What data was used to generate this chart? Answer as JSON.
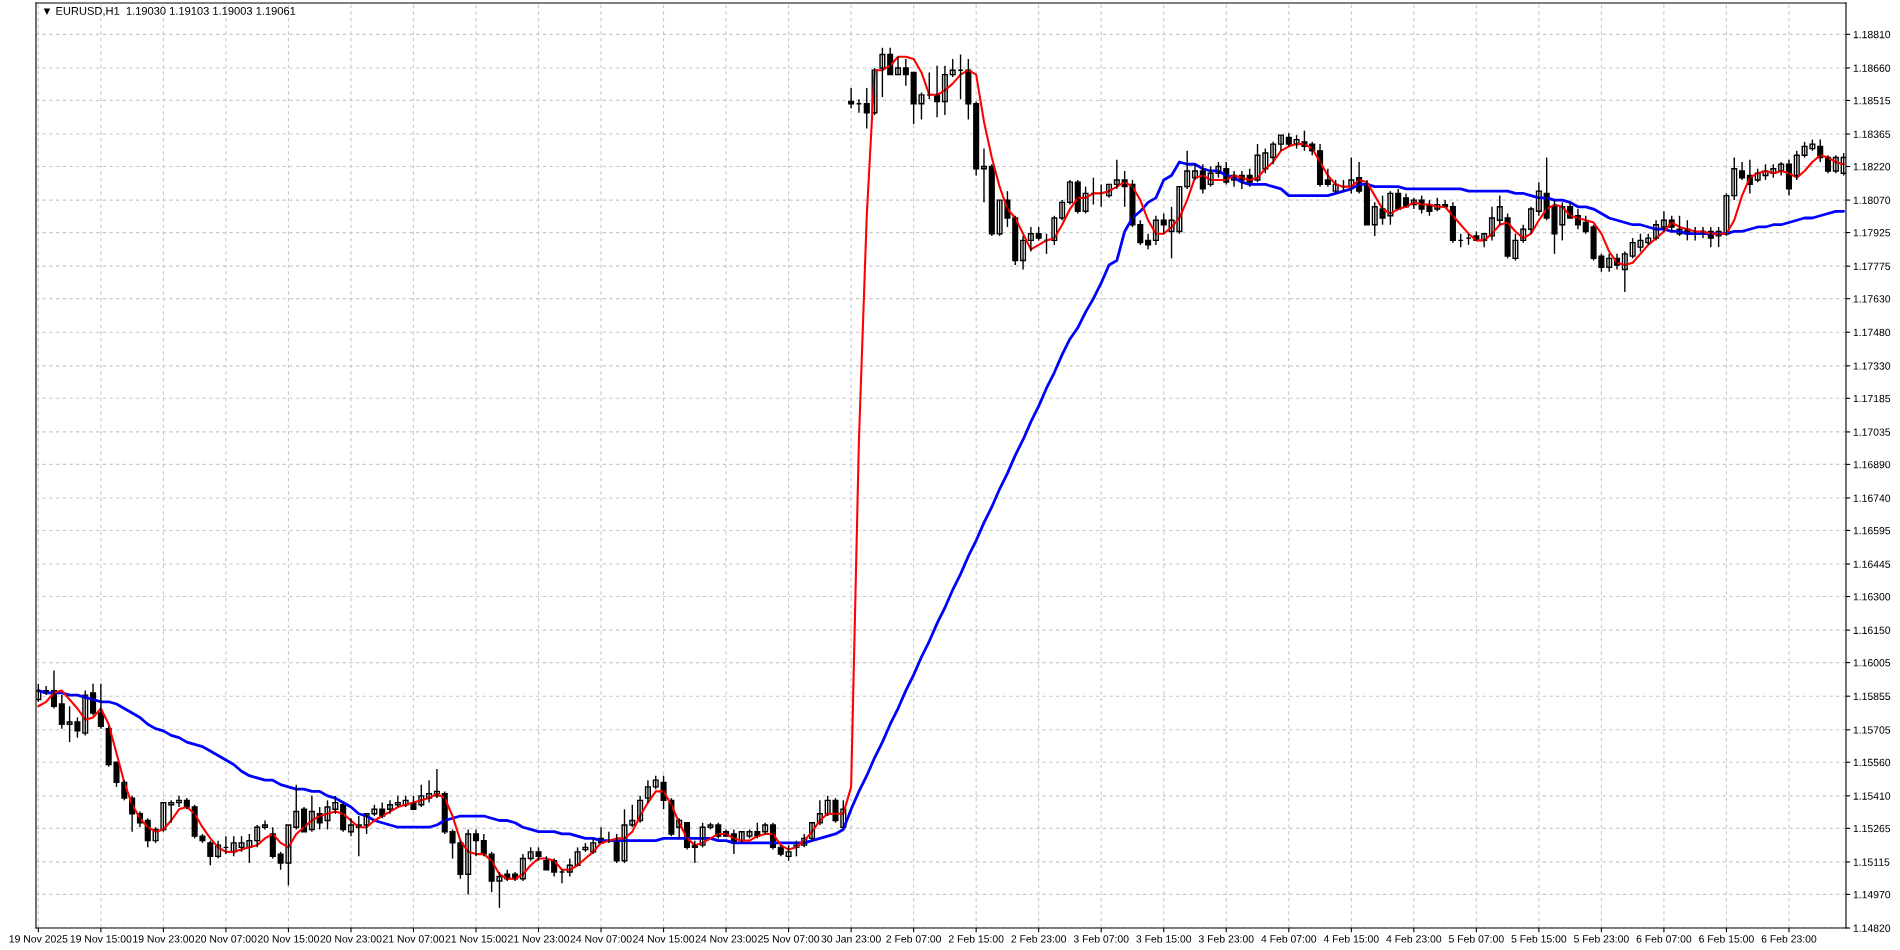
{
  "chart_data": {
    "type": "candlestick",
    "title": "▼ EURUSD,H1  1.19030 1.19103 1.19003 1.19061",
    "categories": [
      "19 Nov 2025",
      null,
      null,
      null,
      null,
      null,
      null,
      null,
      "19 Nov 15:00",
      null,
      null,
      null,
      null,
      null,
      null,
      null,
      "19 Nov 23:00",
      null,
      null,
      null,
      null,
      null,
      null,
      null,
      "20 Nov 07:00",
      null,
      null,
      null,
      null,
      null,
      null,
      null,
      "20 Nov 15:00",
      null,
      null,
      null,
      null,
      null,
      null,
      null,
      "20 Nov 23:00",
      null,
      null,
      null,
      null,
      null,
      null,
      null,
      "21 Nov 07:00",
      null,
      null,
      null,
      null,
      null,
      null,
      null,
      "21 Nov 15:00",
      null,
      null,
      null,
      null,
      null,
      null,
      null,
      "21 Nov 23:00",
      null,
      null,
      null,
      null,
      null,
      null,
      null,
      "24 Nov 07:00",
      null,
      null,
      null,
      null,
      null,
      null,
      null,
      "24 Nov 15:00",
      null,
      null,
      null,
      null,
      null,
      null,
      null,
      "24 Nov 23:00",
      null,
      null,
      null,
      null,
      null,
      null,
      null,
      "25 Nov 07:00",
      null,
      null,
      null,
      null,
      null,
      null,
      null,
      "30 Jan 23:00",
      null,
      null,
      null,
      null,
      null,
      null,
      null,
      "2 Feb 07:00",
      null,
      null,
      null,
      null,
      null,
      null,
      null,
      "2 Feb 15:00",
      null,
      null,
      null,
      null,
      null,
      null,
      null,
      "2 Feb 23:00",
      null,
      null,
      null,
      null,
      null,
      null,
      null,
      "3 Feb 07:00",
      null,
      null,
      null,
      null,
      null,
      null,
      null,
      "3 Feb 15:00",
      null,
      null,
      null,
      null,
      null,
      null,
      null,
      "3 Feb 23:00",
      null,
      null,
      null,
      null,
      null,
      null,
      null,
      "4 Feb 07:00",
      null,
      null,
      null,
      null,
      null,
      null,
      null,
      "4 Feb 15:00",
      null,
      null,
      null,
      null,
      null,
      null,
      null,
      "4 Feb 23:00",
      null,
      null,
      null,
      null,
      null,
      null,
      null,
      "5 Feb 07:00",
      null,
      null,
      null,
      null,
      null,
      null,
      null,
      "5 Feb 15:00",
      null,
      null,
      null,
      null,
      null,
      null,
      null,
      "5 Feb 23:00",
      null,
      null,
      null,
      null,
      null,
      null,
      null,
      "6 Feb 07:00",
      null,
      null,
      null,
      null,
      null,
      null,
      null,
      "6 Feb 15:00",
      null,
      null,
      null,
      null,
      null,
      null,
      null,
      "6 Feb 23:00",
      null,
      null,
      null,
      null,
      null,
      null,
      null
    ],
    "ohlc": [
      [
        1.1584,
        1.1591,
        1.1583,
        1.1588
      ],
      [
        1.1588,
        1.159,
        1.1586,
        1.1587
      ],
      [
        1.1588,
        1.1597,
        1.158,
        1.1581
      ],
      [
        1.1582,
        1.1586,
        1.1571,
        1.1573
      ],
      [
        1.1573,
        1.1581,
        1.1565,
        1.1574
      ],
      [
        1.1574,
        1.1576,
        1.1567,
        1.157
      ],
      [
        1.1569,
        1.1588,
        1.1568,
        1.1586
      ],
      [
        1.1587,
        1.1591,
        1.1577,
        1.1578
      ],
      [
        1.1578,
        1.1591,
        1.1571,
        1.1572
      ],
      [
        1.1571,
        1.1572,
        1.1554,
        1.1555
      ],
      [
        1.1556,
        1.1556,
        1.1545,
        1.1547
      ],
      [
        1.1547,
        1.1548,
        1.1539,
        1.154
      ],
      [
        1.154,
        1.1541,
        1.1525,
        1.1533
      ],
      [
        1.1533,
        1.1534,
        1.1527,
        1.1529
      ],
      [
        1.153,
        1.1531,
        1.1518,
        1.1521
      ],
      [
        1.1521,
        1.1527,
        1.152,
        1.1526
      ],
      [
        1.1526,
        1.1538,
        1.1525,
        1.1538
      ],
      [
        1.1537,
        1.1539,
        1.1529,
        1.1538
      ],
      [
        1.1538,
        1.1541,
        1.1536,
        1.1539
      ],
      [
        1.1539,
        1.154,
        1.1535,
        1.1536
      ],
      [
        1.1536,
        1.1537,
        1.1522,
        1.1523
      ],
      [
        1.1523,
        1.1524,
        1.152,
        1.1521
      ],
      [
        1.152,
        1.1521,
        1.151,
        1.1514
      ],
      [
        1.1514,
        1.1521,
        1.1513,
        1.1519
      ],
      [
        1.1518,
        1.1523,
        1.1515,
        1.1518
      ],
      [
        1.1516,
        1.1523,
        1.1514,
        1.152
      ],
      [
        1.1518,
        1.1523,
        1.1516,
        1.152
      ],
      [
        1.1518,
        1.1524,
        1.1511,
        1.1521
      ],
      [
        1.1521,
        1.1528,
        1.1518,
        1.1527
      ],
      [
        1.1527,
        1.153,
        1.1526,
        1.1528
      ],
      [
        1.1524,
        1.1527,
        1.1513,
        1.1514
      ],
      [
        1.1515,
        1.1516,
        1.1508,
        1.1511
      ],
      [
        1.1511,
        1.1528,
        1.1501,
        1.1528
      ],
      [
        1.1527,
        1.1546,
        1.1526,
        1.1534
      ],
      [
        1.1535,
        1.1536,
        1.1525,
        1.1525
      ],
      [
        1.1526,
        1.1541,
        1.1525,
        1.1534
      ],
      [
        1.1533,
        1.1536,
        1.1526,
        1.1529
      ],
      [
        1.153,
        1.1539,
        1.1526,
        1.1536
      ],
      [
        1.1535,
        1.1541,
        1.1533,
        1.1538
      ],
      [
        1.1537,
        1.1538,
        1.1525,
        1.1526
      ],
      [
        1.1525,
        1.1531,
        1.1523,
        1.1528
      ],
      [
        1.1527,
        1.1532,
        1.1514,
        1.1528
      ],
      [
        1.1528,
        1.1533,
        1.1524,
        1.1533
      ],
      [
        1.1533,
        1.1537,
        1.1532,
        1.1535
      ],
      [
        1.1535,
        1.1538,
        1.1531,
        1.1532
      ],
      [
        1.1535,
        1.1539,
        1.1533,
        1.1537
      ],
      [
        1.1537,
        1.1541,
        1.1536,
        1.1538
      ],
      [
        1.1537,
        1.1541,
        1.1536,
        1.1539
      ],
      [
        1.1538,
        1.1541,
        1.1535,
        1.1535
      ],
      [
        1.1537,
        1.1546,
        1.1536,
        1.1541
      ],
      [
        1.154,
        1.1548,
        1.1538,
        1.1542
      ],
      [
        1.1541,
        1.1553,
        1.154,
        1.1543
      ],
      [
        1.1542,
        1.1543,
        1.1524,
        1.1525
      ],
      [
        1.1525,
        1.1526,
        1.1513,
        1.152
      ],
      [
        1.152,
        1.1521,
        1.1504,
        1.1506
      ],
      [
        1.1506,
        1.1526,
        1.1497,
        1.1524
      ],
      [
        1.1524,
        1.1526,
        1.1514,
        1.1521
      ],
      [
        1.1521,
        1.1524,
        1.1514,
        1.1515
      ],
      [
        1.1515,
        1.1516,
        1.1498,
        1.1503
      ],
      [
        1.1503,
        1.1507,
        1.1491,
        1.1505
      ],
      [
        1.1506,
        1.1508,
        1.1503,
        1.1504
      ],
      [
        1.1506,
        1.1507,
        1.1503,
        1.1504
      ],
      [
        1.1504,
        1.1515,
        1.1503,
        1.1513
      ],
      [
        1.1513,
        1.1518,
        1.1512,
        1.1516
      ],
      [
        1.1516,
        1.1518,
        1.1512,
        1.1514
      ],
      [
        1.1512,
        1.1514,
        1.1508,
        1.1508
      ],
      [
        1.1512,
        1.1513,
        1.1505,
        1.1507
      ],
      [
        1.1507,
        1.1508,
        1.1502,
        1.1507
      ],
      [
        1.1507,
        1.1513,
        1.1505,
        1.151
      ],
      [
        1.151,
        1.1518,
        1.151,
        1.1516
      ],
      [
        1.1517,
        1.152,
        1.1516,
        1.1518
      ],
      [
        1.1516,
        1.1522,
        1.1515,
        1.152
      ],
      [
        1.1522,
        1.1527,
        1.152,
        1.152
      ],
      [
        1.1521,
        1.1525,
        1.152,
        1.1521
      ],
      [
        1.1521,
        1.1524,
        1.1511,
        1.1512
      ],
      [
        1.1512,
        1.1535,
        1.1511,
        1.1528
      ],
      [
        1.1528,
        1.1537,
        1.1527,
        1.153
      ],
      [
        1.153,
        1.1541,
        1.1529,
        1.1539
      ],
      [
        1.154,
        1.1548,
        1.1538,
        1.1545
      ],
      [
        1.1545,
        1.155,
        1.1544,
        1.1548
      ],
      [
        1.1547,
        1.155,
        1.1535,
        1.1539
      ],
      [
        1.1539,
        1.154,
        1.1523,
        1.1524
      ],
      [
        1.1527,
        1.1531,
        1.1522,
        1.153
      ],
      [
        1.1529,
        1.1529,
        1.1517,
        1.1518
      ],
      [
        1.1519,
        1.1521,
        1.1511,
        1.1518
      ],
      [
        1.1519,
        1.1529,
        1.1518,
        1.1527
      ],
      [
        1.1527,
        1.1529,
        1.1526,
        1.1528
      ],
      [
        1.1528,
        1.1529,
        1.1522,
        1.1523
      ],
      [
        1.1525,
        1.1526,
        1.1523,
        1.1523
      ],
      [
        1.1524,
        1.1526,
        1.1515,
        1.152
      ],
      [
        1.1521,
        1.1525,
        1.152,
        1.1525
      ],
      [
        1.1523,
        1.1526,
        1.1522,
        1.1525
      ],
      [
        1.1525,
        1.1529,
        1.1522,
        1.1523
      ],
      [
        1.1525,
        1.1529,
        1.1524,
        1.1528
      ],
      [
        1.1528,
        1.1529,
        1.1517,
        1.1518
      ],
      [
        1.1518,
        1.1519,
        1.1514,
        1.1515
      ],
      [
        1.1514,
        1.1519,
        1.1512,
        1.1516
      ],
      [
        1.1518,
        1.1521,
        1.1514,
        1.1519
      ],
      [
        1.1519,
        1.1524,
        1.1518,
        1.1522
      ],
      [
        1.1522,
        1.1529,
        1.1521,
        1.1529
      ],
      [
        1.1529,
        1.1539,
        1.1528,
        1.1533
      ],
      [
        1.1533,
        1.1541,
        1.1532,
        1.1539
      ],
      [
        1.1539,
        1.154,
        1.1529,
        1.153
      ],
      [
        1.1527,
        1.1539,
        1.1526,
        1.1535
      ],
      [
        1.1851,
        1.1857,
        1.1848,
        1.185
      ],
      [
        1.185,
        1.1852,
        1.1846,
        1.185
      ],
      [
        1.185,
        1.1857,
        1.1839,
        1.1846
      ],
      [
        1.1846,
        1.1866,
        1.1845,
        1.1865
      ],
      [
        1.1866,
        1.1875,
        1.1853,
        1.1872
      ],
      [
        1.1872,
        1.1875,
        1.1863,
        1.1863
      ],
      [
        1.1863,
        1.1871,
        1.1863,
        1.1866
      ],
      [
        1.1866,
        1.187,
        1.1858,
        1.1863
      ],
      [
        1.1864,
        1.1864,
        1.1841,
        1.185
      ],
      [
        1.185,
        1.1855,
        1.1843,
        1.1854
      ],
      [
        1.1854,
        1.1864,
        1.1852,
        1.1854
      ],
      [
        1.1854,
        1.1867,
        1.1844,
        1.1851
      ],
      [
        1.1851,
        1.1867,
        1.1845,
        1.1863
      ],
      [
        1.1863,
        1.187,
        1.1862,
        1.1865
      ],
      [
        1.1865,
        1.1872,
        1.1852,
        1.1865
      ],
      [
        1.1865,
        1.187,
        1.1843,
        1.185
      ],
      [
        1.185,
        1.1851,
        1.1818,
        1.1821
      ],
      [
        1.1821,
        1.183,
        1.1806,
        1.1822
      ],
      [
        1.1822,
        1.1823,
        1.1791,
        1.1792
      ],
      [
        1.1792,
        1.1807,
        1.1791,
        1.1807
      ],
      [
        1.1807,
        1.1811,
        1.1795,
        1.1799
      ],
      [
        1.1799,
        1.18,
        1.1778,
        1.178
      ],
      [
        1.178,
        1.1791,
        1.1776,
        1.1789
      ],
      [
        1.1789,
        1.1795,
        1.1784,
        1.1792
      ],
      [
        1.1792,
        1.1795,
        1.1789,
        1.179
      ],
      [
        1.1789,
        1.1792,
        1.1783,
        1.1789
      ],
      [
        1.1789,
        1.18,
        1.1787,
        1.1799
      ],
      [
        1.1799,
        1.1807,
        1.1798,
        1.1806
      ],
      [
        1.1806,
        1.1816,
        1.1805,
        1.1815
      ],
      [
        1.1815,
        1.1816,
        1.1801,
        1.1802
      ],
      [
        1.1802,
        1.1813,
        1.1801,
        1.181
      ],
      [
        1.181,
        1.1817,
        1.1805,
        1.181
      ],
      [
        1.181,
        1.1814,
        1.1804,
        1.181
      ],
      [
        1.1809,
        1.1814,
        1.1808,
        1.1814
      ],
      [
        1.1814,
        1.1825,
        1.1812,
        1.1816
      ],
      [
        1.1816,
        1.182,
        1.1804,
        1.1813
      ],
      [
        1.1814,
        1.1816,
        1.1795,
        1.1796
      ],
      [
        1.1796,
        1.1798,
        1.1787,
        1.1788
      ],
      [
        1.1789,
        1.1792,
        1.1785,
        1.1787
      ],
      [
        1.1789,
        1.18,
        1.1787,
        1.1798
      ],
      [
        1.1798,
        1.1801,
        1.1792,
        1.1796
      ],
      [
        1.1793,
        1.1804,
        1.1781,
        1.1798
      ],
      [
        1.1793,
        1.1813,
        1.1792,
        1.1813
      ],
      [
        1.1813,
        1.1829,
        1.1812,
        1.182
      ],
      [
        1.1817,
        1.1823,
        1.1816,
        1.182
      ],
      [
        1.182,
        1.1823,
        1.181,
        1.1812
      ],
      [
        1.1814,
        1.1822,
        1.1813,
        1.1819
      ],
      [
        1.1819,
        1.1824,
        1.1817,
        1.1822
      ],
      [
        1.1821,
        1.1824,
        1.1814,
        1.1815
      ],
      [
        1.1816,
        1.182,
        1.1813,
        1.1818
      ],
      [
        1.1818,
        1.182,
        1.1812,
        1.1816
      ],
      [
        1.1818,
        1.1821,
        1.1813,
        1.1815
      ],
      [
        1.1816,
        1.1832,
        1.1815,
        1.1827
      ],
      [
        1.1821,
        1.183,
        1.1819,
        1.1828
      ],
      [
        1.1826,
        1.1833,
        1.1823,
        1.1832
      ],
      [
        1.1832,
        1.1836,
        1.1829,
        1.1836
      ],
      [
        1.1835,
        1.1837,
        1.1831,
        1.1832
      ],
      [
        1.1832,
        1.1836,
        1.183,
        1.1834
      ],
      [
        1.1833,
        1.1838,
        1.1829,
        1.1831
      ],
      [
        1.1832,
        1.1833,
        1.1827,
        1.1829
      ],
      [
        1.1829,
        1.1832,
        1.1813,
        1.1814
      ],
      [
        1.1816,
        1.1821,
        1.1813,
        1.1814
      ],
      [
        1.1811,
        1.1816,
        1.181,
        1.1814
      ],
      [
        1.1813,
        1.1816,
        1.1811,
        1.1813
      ],
      [
        1.1813,
        1.1826,
        1.181,
        1.1816
      ],
      [
        1.1817,
        1.1824,
        1.181,
        1.1811
      ],
      [
        1.1814,
        1.1816,
        1.1796,
        1.1796
      ],
      [
        1.1796,
        1.1806,
        1.1791,
        1.1804
      ],
      [
        1.1803,
        1.1809,
        1.1796,
        1.1799
      ],
      [
        1.18,
        1.1811,
        1.1796,
        1.181
      ],
      [
        1.181,
        1.1812,
        1.1803,
        1.1803
      ],
      [
        1.1808,
        1.181,
        1.1804,
        1.1804
      ],
      [
        1.1805,
        1.1808,
        1.1803,
        1.1807
      ],
      [
        1.1807,
        1.1809,
        1.1801,
        1.1803
      ],
      [
        1.1805,
        1.1807,
        1.18,
        1.1802
      ],
      [
        1.1803,
        1.1808,
        1.1802,
        1.1805
      ],
      [
        1.1805,
        1.1807,
        1.1804,
        1.1804
      ],
      [
        1.1804,
        1.1806,
        1.1788,
        1.1789
      ],
      [
        1.1789,
        1.1792,
        1.1786,
        1.1789
      ],
      [
        1.179,
        1.1792,
        1.1787,
        1.179
      ],
      [
        1.1791,
        1.1793,
        1.1789,
        1.1789
      ],
      [
        1.1789,
        1.1792,
        1.1786,
        1.1792
      ],
      [
        1.1791,
        1.1804,
        1.1789,
        1.1799
      ],
      [
        1.1798,
        1.1809,
        1.1796,
        1.1804
      ],
      [
        1.1799,
        1.1801,
        1.1781,
        1.1782
      ],
      [
        1.1781,
        1.1792,
        1.178,
        1.1789
      ],
      [
        1.1789,
        1.1796,
        1.1788,
        1.1794
      ],
      [
        1.1794,
        1.1804,
        1.1792,
        1.1803
      ],
      [
        1.1802,
        1.1815,
        1.18,
        1.1811
      ],
      [
        1.181,
        1.1826,
        1.1798,
        1.1799
      ],
      [
        1.1804,
        1.1807,
        1.1783,
        1.1792
      ],
      [
        1.1796,
        1.1806,
        1.1789,
        1.1804
      ],
      [
        1.1804,
        1.1806,
        1.1799,
        1.1799
      ],
      [
        1.18,
        1.1803,
        1.1794,
        1.1796
      ],
      [
        1.1797,
        1.18,
        1.1792,
        1.1793
      ],
      [
        1.1795,
        1.1796,
        1.178,
        1.1781
      ],
      [
        1.1782,
        1.1783,
        1.1775,
        1.1777
      ],
      [
        1.1777,
        1.1783,
        1.1775,
        1.1781
      ],
      [
        1.1781,
        1.1783,
        1.1776,
        1.1778
      ],
      [
        1.1776,
        1.1784,
        1.1766,
        1.1783
      ],
      [
        1.1782,
        1.179,
        1.1781,
        1.1788
      ],
      [
        1.1786,
        1.1792,
        1.1784,
        1.1789
      ],
      [
        1.1788,
        1.1792,
        1.1787,
        1.179
      ],
      [
        1.179,
        1.1798,
        1.1789,
        1.1796
      ],
      [
        1.1795,
        1.1802,
        1.1793,
        1.1798
      ],
      [
        1.1798,
        1.18,
        1.1793,
        1.1795
      ],
      [
        1.1792,
        1.18,
        1.1791,
        1.1794
      ],
      [
        1.1794,
        1.1798,
        1.1789,
        1.1792
      ],
      [
        1.1792,
        1.1795,
        1.1789,
        1.1792
      ],
      [
        1.1792,
        1.1795,
        1.179,
        1.1793
      ],
      [
        1.1793,
        1.1795,
        1.1786,
        1.179
      ],
      [
        1.1791,
        1.1795,
        1.1786,
        1.1793
      ],
      [
        1.1792,
        1.181,
        1.1791,
        1.1809
      ],
      [
        1.1809,
        1.1826,
        1.1807,
        1.1821
      ],
      [
        1.182,
        1.1824,
        1.1816,
        1.1817
      ],
      [
        1.1818,
        1.1825,
        1.181,
        1.1814
      ],
      [
        1.1816,
        1.1821,
        1.1815,
        1.1819
      ],
      [
        1.1818,
        1.1823,
        1.1816,
        1.182
      ],
      [
        1.1819,
        1.1823,
        1.1817,
        1.1821
      ],
      [
        1.182,
        1.1824,
        1.1818,
        1.1823
      ],
      [
        1.1823,
        1.1825,
        1.1809,
        1.1812
      ],
      [
        1.1818,
        1.1829,
        1.1816,
        1.1827
      ],
      [
        1.1827,
        1.1833,
        1.1826,
        1.1831
      ],
      [
        1.183,
        1.1834,
        1.1829,
        1.1832
      ],
      [
        1.1831,
        1.1834,
        1.1824,
        1.1826
      ],
      [
        1.1826,
        1.1827,
        1.1819,
        1.182
      ],
      [
        1.182,
        1.1827,
        1.1819,
        1.1826
      ],
      [
        1.1819,
        1.1828,
        1.1818,
        1.1826
      ]
    ],
    "series": [
      {
        "type": "line",
        "color": "#ff0000",
        "values": [
          1.1581,
          1.1583,
          1.1587,
          1.1588,
          1.1584,
          1.158,
          1.1575,
          1.1576,
          1.158,
          1.1573,
          1.156,
          1.1547,
          1.1537,
          1.1531,
          1.1527,
          1.1525,
          1.1526,
          1.153,
          1.1535,
          1.1536,
          1.1533,
          1.1527,
          1.1522,
          1.1518,
          1.1516,
          1.1516,
          1.1517,
          1.1518,
          1.1519,
          1.1522,
          1.1524,
          1.152,
          1.1518,
          1.1524,
          1.1527,
          1.153,
          1.1532,
          1.1533,
          1.1534,
          1.1533,
          1.153,
          1.1527,
          1.1527,
          1.153,
          1.1532,
          1.1534,
          1.1536,
          1.1537,
          1.1538,
          1.1539,
          1.154,
          1.1542,
          1.154,
          1.1532,
          1.1521,
          1.1516,
          1.1515,
          1.1515,
          1.1512,
          1.1506,
          1.1504,
          1.1504,
          1.1506,
          1.151,
          1.1513,
          1.1513,
          1.1512,
          1.1508,
          1.1508,
          1.151,
          1.1513,
          1.1516,
          1.152,
          1.1521,
          1.1522,
          1.1522,
          1.1525,
          1.1532,
          1.1538,
          1.1543,
          1.1543,
          1.1537,
          1.1529,
          1.1522,
          1.1519,
          1.152,
          1.1522,
          1.1524,
          1.1524,
          1.1522,
          1.1521,
          1.1521,
          1.1523,
          1.1524,
          1.1524,
          1.1519,
          1.1517,
          1.1518,
          1.1521,
          1.1525,
          1.153,
          1.1533,
          1.1533,
          1.1533,
          1.1545,
          1.17,
          1.18,
          1.1865,
          1.1865,
          1.1867,
          1.1871,
          1.1871,
          1.187,
          1.1864,
          1.1854,
          1.1854,
          1.1856,
          1.1859,
          1.1863,
          1.1865,
          1.1863,
          1.1842,
          1.1826,
          1.1813,
          1.1803,
          1.1799,
          1.1792,
          1.1785,
          1.1787,
          1.1789,
          1.179,
          1.1796,
          1.1803,
          1.1808,
          1.1808,
          1.181,
          1.181,
          1.1811,
          1.1813,
          1.1815,
          1.1813,
          1.1807,
          1.1798,
          1.1792,
          1.1792,
          1.1795,
          1.1799,
          1.1807,
          1.1817,
          1.1818,
          1.1816,
          1.1816,
          1.1816,
          1.1818,
          1.1817,
          1.1816,
          1.1817,
          1.1821,
          1.1824,
          1.1829,
          1.1831,
          1.1832,
          1.1832,
          1.183,
          1.1824,
          1.1818,
          1.1814,
          1.1813,
          1.1813,
          1.1816,
          1.1815,
          1.1809,
          1.1803,
          1.1801,
          1.1803,
          1.1804,
          1.1806,
          1.1805,
          1.1805,
          1.1804,
          1.1804,
          1.18,
          1.1796,
          1.1792,
          1.1789,
          1.1789,
          1.1792,
          1.1796,
          1.1797,
          1.1793,
          1.179,
          1.1792,
          1.1798,
          1.1803,
          1.1805,
          1.1804,
          1.18,
          1.1799,
          1.1798,
          1.1797,
          1.1792,
          1.1784,
          1.1779,
          1.1778,
          1.1779,
          1.1783,
          1.1787,
          1.179,
          1.1793,
          1.1797,
          1.1795,
          1.1794,
          1.1793,
          1.1793,
          1.1792,
          1.1792,
          1.1792,
          1.1798,
          1.1809,
          1.1817,
          1.1819,
          1.182,
          1.1819,
          1.182,
          1.1819,
          1.1817,
          1.182,
          1.1824,
          1.1827,
          1.1826,
          1.1824,
          1.1823
        ]
      },
      {
        "type": "line",
        "color": "#0000ff",
        "values": [
          1.1588,
          1.1587,
          1.1587,
          1.1587,
          1.1586,
          1.1586,
          1.1585,
          1.1584,
          1.1583,
          1.1583,
          1.1582,
          1.158,
          1.1578,
          1.1576,
          1.1573,
          1.1571,
          1.157,
          1.1568,
          1.1567,
          1.1565,
          1.1564,
          1.1563,
          1.1561,
          1.1559,
          1.1557,
          1.1555,
          1.1552,
          1.155,
          1.1549,
          1.1548,
          1.1548,
          1.1546,
          1.1545,
          1.1544,
          1.1544,
          1.1543,
          1.1543,
          1.1541,
          1.154,
          1.1538,
          1.1536,
          1.1533,
          1.1532,
          1.153,
          1.1529,
          1.1528,
          1.1527,
          1.1527,
          1.1527,
          1.1527,
          1.1527,
          1.1528,
          1.153,
          1.1531,
          1.1532,
          1.1532,
          1.1532,
          1.1532,
          1.1531,
          1.153,
          1.153,
          1.1529,
          1.1527,
          1.1526,
          1.1525,
          1.1525,
          1.1525,
          1.1524,
          1.1524,
          1.1523,
          1.1522,
          1.1522,
          1.1521,
          1.1521,
          1.1521,
          1.1521,
          1.1521,
          1.1521,
          1.1521,
          1.1521,
          1.1522,
          1.1522,
          1.1522,
          1.1522,
          1.1522,
          1.1522,
          1.1522,
          1.1521,
          1.1521,
          1.152,
          1.152,
          1.152,
          1.152,
          1.152,
          1.152,
          1.152,
          1.152,
          1.152,
          1.152,
          1.1521,
          1.1522,
          1.1523,
          1.1524,
          1.1526,
          1.1535,
          1.1543,
          1.155,
          1.1558,
          1.1565,
          1.1573,
          1.158,
          1.1588,
          1.1595,
          1.1603,
          1.161,
          1.1618,
          1.1625,
          1.1633,
          1.164,
          1.1648,
          1.1655,
          1.1663,
          1.167,
          1.1678,
          1.1685,
          1.1693,
          1.17,
          1.1708,
          1.1715,
          1.1723,
          1.173,
          1.1738,
          1.1745,
          1.175,
          1.1757,
          1.1763,
          1.177,
          1.1778,
          1.178,
          1.1793,
          1.1799,
          1.1802,
          1.1806,
          1.1808,
          1.1816,
          1.1818,
          1.1824,
          1.1823,
          1.1823,
          1.1821,
          1.182,
          1.182,
          1.1818,
          1.1817,
          1.1815,
          1.1814,
          1.1814,
          1.1814,
          1.1813,
          1.1812,
          1.1809,
          1.1809,
          1.1809,
          1.1809,
          1.1809,
          1.1809,
          1.181,
          1.1811,
          1.1812,
          1.1814,
          1.1814,
          1.1813,
          1.1813,
          1.1813,
          1.1813,
          1.1812,
          1.1812,
          1.1812,
          1.1812,
          1.1812,
          1.1812,
          1.1812,
          1.1812,
          1.1811,
          1.1811,
          1.1811,
          1.1811,
          1.1811,
          1.1811,
          1.181,
          1.181,
          1.1809,
          1.1808,
          1.1808,
          1.1807,
          1.1807,
          1.1806,
          1.1804,
          1.1804,
          1.1803,
          1.1801,
          1.1799,
          1.1798,
          1.1797,
          1.1796,
          1.1796,
          1.1795,
          1.1794,
          1.1794,
          1.1793,
          1.1793,
          1.1792,
          1.1792,
          1.1792,
          1.1792,
          1.1792,
          1.1792,
          1.1793,
          1.1793,
          1.1794,
          1.1795,
          1.1795,
          1.1796,
          1.1796,
          1.1797,
          1.1798,
          1.1799,
          1.1799,
          1.18,
          1.1801,
          1.1802,
          1.1802
        ]
      }
    ],
    "ylim": [
      1.1482,
      1.1895
    ],
    "yticks": [
      {
        "value": 1.1881,
        "label": "1.18810"
      },
      {
        "value": 1.1866,
        "label": "1.18660"
      },
      1.18515,
      1.18365,
      {
        "value": 1.1822,
        "label": "1.18220"
      },
      {
        "value": 1.1807,
        "label": "1.18070"
      },
      1.17925,
      1.17775,
      {
        "value": 1.1763,
        "label": "1.17630"
      },
      {
        "value": 1.1748,
        "label": "1.17480"
      },
      {
        "value": 1.1733,
        "label": "1.17330"
      },
      1.17185,
      1.17035,
      {
        "value": 1.1689,
        "label": "1.16890"
      },
      {
        "value": 1.1674,
        "label": "1.16740"
      },
      1.16595,
      1.16445,
      {
        "value": 1.163,
        "label": "1.16300"
      },
      {
        "value": 1.1615,
        "label": "1.16150"
      },
      1.16005,
      1.15855,
      1.15705,
      {
        "value": 1.1556,
        "label": "1.15560"
      },
      {
        "value": 1.1541,
        "label": "1.15410"
      },
      1.15265,
      1.15115,
      {
        "value": 1.1497,
        "label": "1.14970"
      },
      {
        "value": 1.1482,
        "label": "1.14820"
      }
    ],
    "grid": true
  }
}
